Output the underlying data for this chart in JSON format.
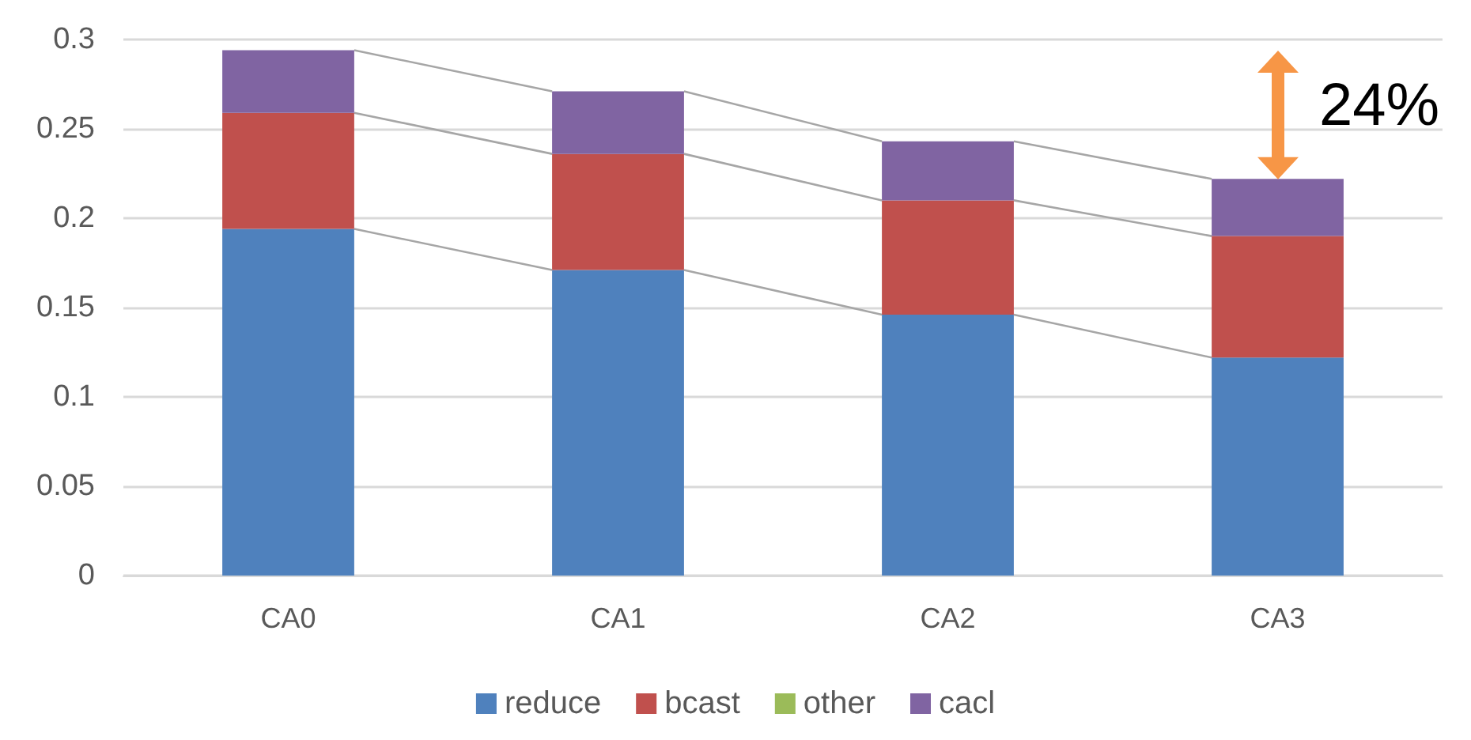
{
  "chart_data": {
    "type": "bar",
    "stacked": true,
    "categories": [
      "CA0",
      "CA1",
      "CA2",
      "CA3"
    ],
    "series": [
      {
        "name": "reduce",
        "color": "#4f81bd",
        "values": [
          0.194,
          0.171,
          0.146,
          0.122
        ]
      },
      {
        "name": "bcast",
        "color": "#c0504d",
        "values": [
          0.065,
          0.065,
          0.064,
          0.068
        ]
      },
      {
        "name": "other",
        "color": "#9bbb59",
        "values": [
          0,
          0,
          0,
          0
        ]
      },
      {
        "name": "cacl",
        "color": "#8064a2",
        "values": [
          0.035,
          0.035,
          0.033,
          0.032
        ]
      }
    ],
    "ylim": [
      0,
      0.3
    ],
    "yticks": [
      0,
      0.05,
      0.1,
      0.15,
      0.2,
      0.25,
      0.3
    ],
    "grid": "y",
    "legend": "bottom",
    "annotations": [
      "24%"
    ]
  }
}
